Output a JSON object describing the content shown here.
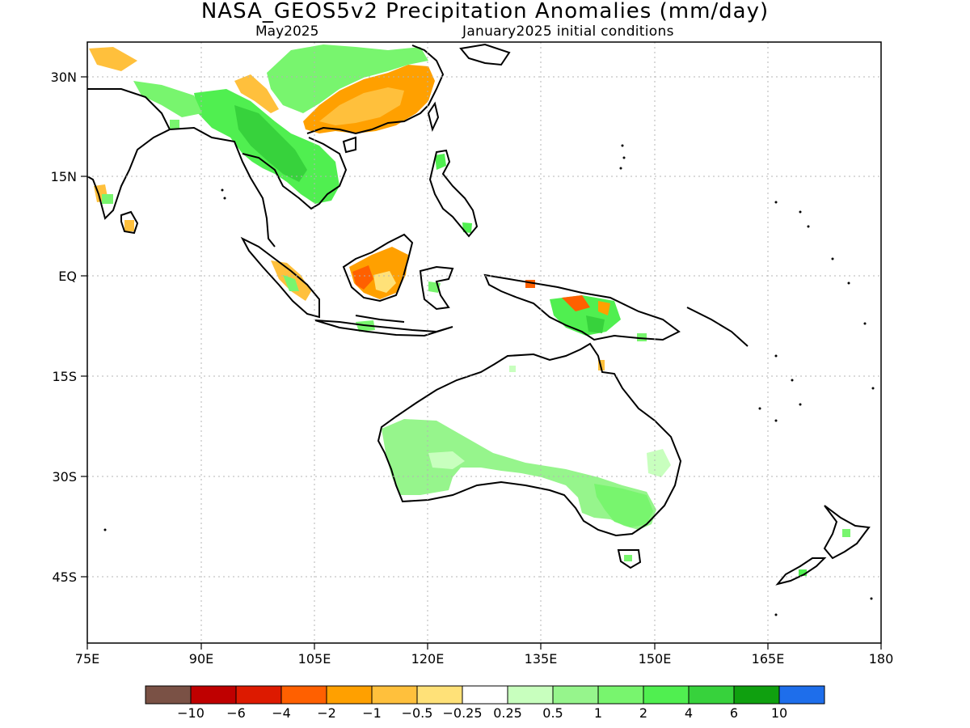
{
  "header": {
    "title": "NASA_GEOS5v2 Precipitation Anomalies (mm/day)",
    "subtitle_left": "May2025",
    "subtitle_right": "January2025 initial conditions"
  },
  "map": {
    "region": "South/East Asia, Maritime Continent and Australia",
    "lat_labels": [
      "30N",
      "15N",
      "EQ",
      "15S",
      "30S",
      "45S"
    ],
    "lon_labels": [
      "75E",
      "90E",
      "105E",
      "120E",
      "135E",
      "150E",
      "165E",
      "180"
    ],
    "lat_values": [
      30,
      15,
      0,
      -15,
      -30,
      -45
    ],
    "lon_values": [
      75,
      90,
      105,
      120,
      135,
      150,
      165,
      180
    ],
    "lon_range": [
      75,
      180
    ],
    "lat_range": [
      -55,
      35
    ],
    "grid": "dotted"
  },
  "colorbar": {
    "colors": [
      "#7a5145",
      "#bf0000",
      "#dd1a00",
      "#ff6000",
      "#ffa000",
      "#ffc03c",
      "#ffe178",
      "#ffffff",
      "#c8ffbe",
      "#96f58c",
      "#78f56e",
      "#50ef50",
      "#37d23c",
      "#0fa00f",
      "#1e6eeb"
    ],
    "labels": [
      "−10",
      "−6",
      "−4",
      "−2",
      "−1",
      "−0.5",
      "−0.25",
      "0.25",
      "0.5",
      "1",
      "2",
      "4",
      "6",
      "10"
    ]
  },
  "anomalies": [
    {
      "name": "china-dry",
      "color": "#ffa000"
    },
    {
      "name": "indochina-wet",
      "color": "#50ef50"
    },
    {
      "name": "australia-wet",
      "color": "#96f58c"
    },
    {
      "name": "borneo-dry",
      "color": "#ff6000"
    }
  ]
}
